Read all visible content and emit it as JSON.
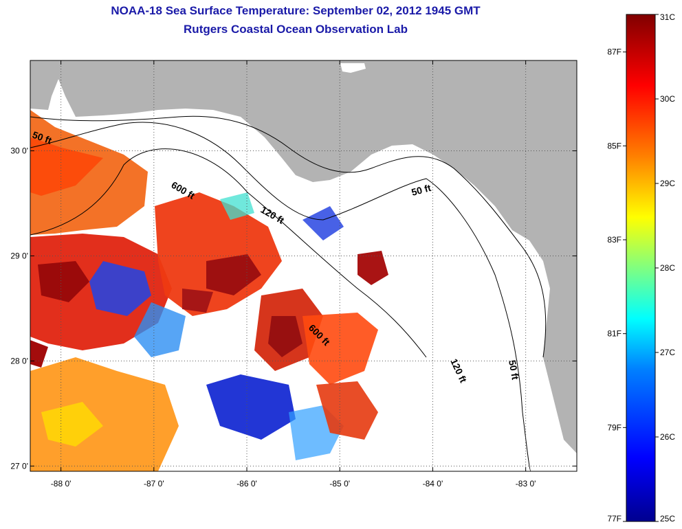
{
  "title": "NOAA-18 Sea Surface Temperature:  September 02, 2012 1945 GMT",
  "subtitle": "Rutgers Coastal Ocean Observation Lab",
  "map": {
    "lon_range": [
      -88.33,
      -82.45
    ],
    "lat_range": [
      26.95,
      30.86
    ],
    "lon_ticks": [
      {
        "value": -88,
        "label": "-88 0'"
      },
      {
        "value": -87,
        "label": "-87 0'"
      },
      {
        "value": -86,
        "label": "-86 0'"
      },
      {
        "value": -85,
        "label": "-85 0'"
      },
      {
        "value": -84,
        "label": "-84 0'"
      },
      {
        "value": -83,
        "label": "-83 0'"
      }
    ],
    "lat_ticks": [
      {
        "value": 30,
        "label": "30 0'"
      },
      {
        "value": 29,
        "label": "29 0'"
      },
      {
        "value": 28,
        "label": "28 0'"
      },
      {
        "value": 27,
        "label": "27 0'"
      }
    ],
    "contour_labels": [
      "50 ft",
      "600 ft",
      "120 ft",
      "50 ft",
      "600 ft",
      "120 ft",
      "50 ft"
    ],
    "colors": {
      "land": "#b3b3b3",
      "ocean": "#ffffff",
      "grid": "#555555"
    }
  },
  "colorbar": {
    "celsius_labels": [
      "31C",
      "30C",
      "29C",
      "28C",
      "27C",
      "26C",
      "25C"
    ],
    "fahrenheit_labels": [
      "87F",
      "85F",
      "83F",
      "81F",
      "79F",
      "77F"
    ],
    "range_c": [
      25,
      31
    ],
    "colormap": [
      "#00008f",
      "#0000ff",
      "#0080ff",
      "#00ffff",
      "#80ff80",
      "#ffff00",
      "#ff8000",
      "#ff0000",
      "#800000"
    ]
  }
}
